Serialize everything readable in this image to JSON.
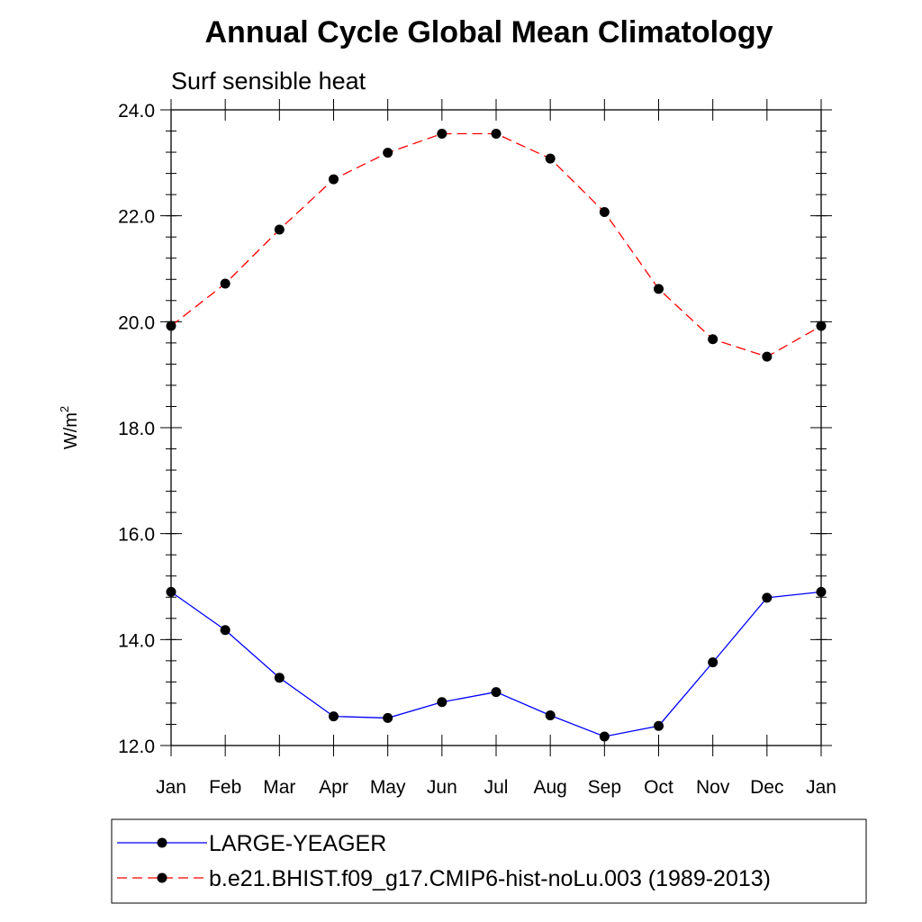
{
  "chart_data": {
    "type": "line",
    "title": "Annual Cycle Global Mean Climatology",
    "subtitle": "Surf sensible heat",
    "ylabel_base": "W/m",
    "ylabel_sup": "2",
    "xlabel": "",
    "categories": [
      "Jan",
      "Feb",
      "Mar",
      "Apr",
      "May",
      "Jun",
      "Jul",
      "Aug",
      "Sep",
      "Oct",
      "Nov",
      "Dec",
      "Jan"
    ],
    "ylim": [
      12.0,
      24.0
    ],
    "yticks": [
      "12.0",
      "14.0",
      "16.0",
      "18.0",
      "20.0",
      "22.0",
      "24.0"
    ],
    "grid": false,
    "legend_position": "bottom",
    "series": [
      {
        "name": "LARGE-YEAGER",
        "color": "#0000ff",
        "dash": "solid",
        "marker": "filled-circle",
        "values": [
          14.9,
          14.18,
          13.28,
          12.55,
          12.52,
          12.82,
          13.01,
          12.57,
          12.17,
          12.37,
          13.57,
          14.79,
          14.9
        ]
      },
      {
        "name": "b.e21.BHIST.f09_g17.CMIP6-hist-noLu.003 (1989-2013)",
        "color": "#ff0000",
        "dash": "dashed",
        "marker": "filled-circle",
        "values": [
          19.92,
          20.72,
          21.74,
          22.69,
          23.19,
          23.55,
          23.55,
          23.08,
          22.07,
          20.62,
          19.67,
          19.34,
          19.92
        ]
      }
    ]
  }
}
